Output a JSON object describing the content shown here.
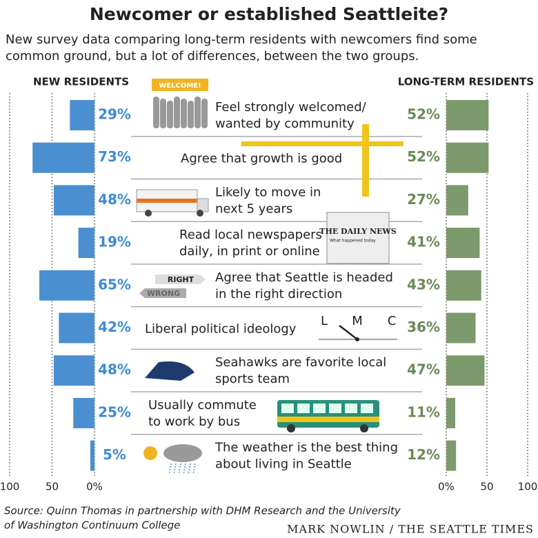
{
  "chart_data": {
    "type": "butterfly",
    "title": "Newcomer or established Seattleite?",
    "subtitle": [
      "New survey data comparing long-term residents with newcomers find some",
      "common ground, but a lot of differences, between the two groups."
    ],
    "categories": [
      [
        "Feel strongly welcomed/",
        "wanted by community"
      ],
      [
        "Agree that growth is good"
      ],
      [
        "Likely to move in",
        "next 5 years"
      ],
      [
        "Read local newspapers",
        "daily, in print or online"
      ],
      [
        "Agree that Seattle is headed",
        "in the right direction"
      ],
      [
        "Liberal political ideology"
      ],
      [
        "Seahawks are favorite local",
        "sports team"
      ],
      [
        "Usually commute",
        "to work by bus"
      ],
      [
        "The weather is the best thing",
        "about living in Seattle"
      ]
    ],
    "series": [
      {
        "name": "NEW RESIDENTS",
        "color": "#4a8fd0",
        "label_color": "#3d8bd4",
        "values": [
          29,
          73,
          48,
          19,
          65,
          42,
          48,
          25,
          5
        ],
        "value_labels": [
          "29%",
          "73%",
          "48%",
          "19%",
          "65%",
          "42%",
          "48%",
          "25%",
          "5%"
        ]
      },
      {
        "name": "LONG-TERM RESIDENTS",
        "color": "#7c9a6b",
        "label_color": "#6a8a58",
        "values": [
          52,
          52,
          27,
          41,
          43,
          36,
          47,
          11,
          12
        ],
        "value_labels": [
          "52%",
          "52%",
          "27%",
          "41%",
          "43%",
          "36%",
          "47%",
          "11%",
          "12%"
        ]
      }
    ],
    "xlim": [
      0,
      100
    ],
    "xticks": [
      {
        "value": 0,
        "label": "0%"
      },
      50,
      100
    ],
    "grid": true,
    "illustration_texts": {
      "welcome": "WELCOME!",
      "right": "RIGHT",
      "wrong": "WRONG",
      "newspaper": "THE DAILY NEWS",
      "headline": "What happened today",
      "ideology": [
        "L",
        "M",
        "C"
      ]
    },
    "source": [
      "Source: Quinn Thomas in partnership with DHM Research and the University",
      "of Washington Continuum College"
    ],
    "credit": "MARK NOWLIN / THE SEATTLE TIMES"
  }
}
